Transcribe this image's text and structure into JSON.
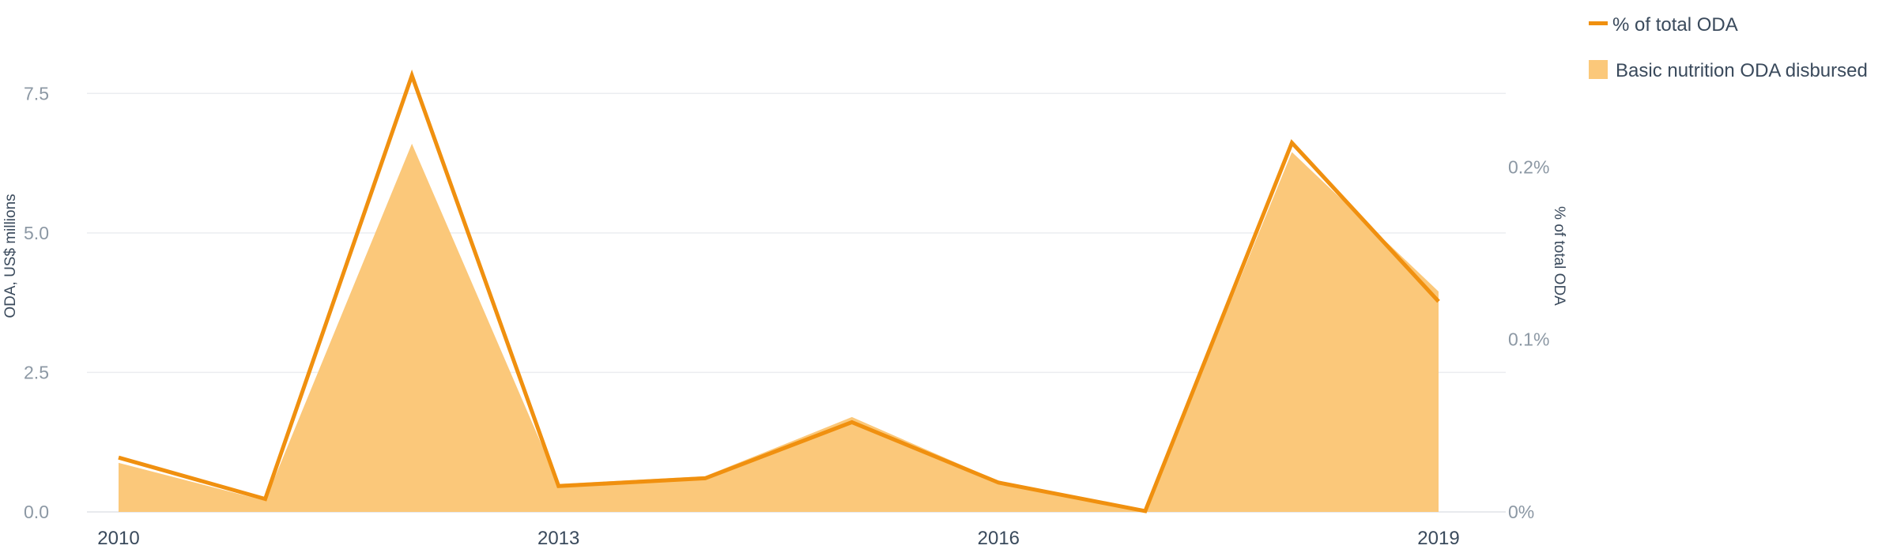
{
  "chart_data": {
    "type": "area",
    "categories": [
      "2010",
      "2011",
      "2012",
      "2013",
      "2014",
      "2015",
      "2016",
      "2017",
      "2018",
      "2019"
    ],
    "x_tick_labels": [
      "2010",
      "2013",
      "2016",
      "2019"
    ],
    "left_axis": {
      "label": "ODA, US$ millions",
      "ylim": [
        0,
        8.75
      ],
      "ticks": [
        0,
        2.5,
        5,
        7.5
      ],
      "tick_labels": [
        "0.0",
        "2.5",
        "5.0",
        "7.5"
      ]
    },
    "right_axis": {
      "label": "% of total ODA",
      "ylim": [
        0,
        0.00283
      ],
      "ticks": [
        0,
        0.001,
        0.002
      ],
      "tick_labels": [
        "0%",
        "0.1%",
        "0.2%"
      ]
    },
    "series": [
      {
        "name": "Basic nutrition ODA disbursed",
        "type": "area",
        "axis": "left",
        "color": "#fbc87a",
        "values": [
          0.88,
          0.2,
          6.6,
          0.5,
          0.64,
          1.7,
          0.55,
          0.02,
          6.45,
          3.95
        ]
      },
      {
        "name": "% of total ODA",
        "type": "line",
        "axis": "right",
        "color": "#f0900f",
        "values": [
          0.000315,
          7.5e-05,
          0.00253,
          0.00015,
          0.000195,
          0.00052,
          0.00017,
          5e-06,
          0.00214,
          0.00122
        ]
      }
    ],
    "grid": true,
    "legend_position": "top-right"
  }
}
